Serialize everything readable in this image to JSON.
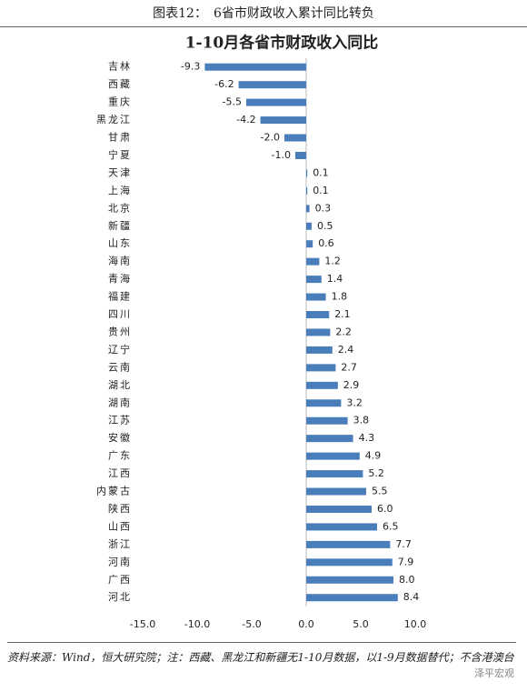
{
  "header": {
    "title": "图表12：　6省市财政收入累计同比转负"
  },
  "chart_data": {
    "type": "hbar",
    "title": "1-10月各省市财政收入同比",
    "categories": [
      "吉林",
      "西藏",
      "重庆",
      "黑龙江",
      "甘肃",
      "宁夏",
      "天津",
      "上海",
      "北京",
      "新疆",
      "山东",
      "海南",
      "青海",
      "福建",
      "四川",
      "贵州",
      "辽宁",
      "云南",
      "湖北",
      "湖南",
      "江苏",
      "安徽",
      "广东",
      "江西",
      "内蒙古",
      "陕西",
      "山西",
      "浙江",
      "河南",
      "广西",
      "河北"
    ],
    "values": [
      -9.3,
      -6.2,
      -5.5,
      -4.2,
      -2.0,
      -1.0,
      0.1,
      0.1,
      0.3,
      0.5,
      0.6,
      1.2,
      1.4,
      1.8,
      2.1,
      2.2,
      2.4,
      2.7,
      2.9,
      3.2,
      3.8,
      4.3,
      4.9,
      5.2,
      5.5,
      6.0,
      6.5,
      7.7,
      7.9,
      8.0,
      8.4
    ],
    "value_labels": [
      "-9.3",
      "-6.2",
      "-5.5",
      "-4.2",
      "-2.0",
      "-1.0",
      "0.1",
      "0.1",
      "0.3",
      "0.5",
      "0.6",
      "1.2",
      "1.4",
      "1.8",
      "2.1",
      "2.2",
      "2.4",
      "2.7",
      "2.9",
      "3.2",
      "3.8",
      "4.3",
      "4.9",
      "5.2",
      "5.5",
      "6.0",
      "6.5",
      "7.7",
      "7.9",
      "8.0",
      "8.4"
    ],
    "color": "#4a7ebb",
    "xlim": [
      -15,
      10
    ],
    "xticks": [
      {
        "value": -15,
        "label": "-15.0"
      },
      {
        "value": -10,
        "label": "-10.0"
      },
      {
        "value": -5,
        "label": "-5.0"
      },
      {
        "value": 0,
        "label": "0.0"
      },
      {
        "value": 5,
        "label": "5.0"
      },
      {
        "value": 10,
        "label": "10.0"
      }
    ]
  },
  "footer": {
    "note": "资料来源：Wind，恒大研究院；注：西藏、黑龙江和新疆无1-10月数据，以1-9月数据替代；不含港澳台",
    "watermark": "泽平宏观"
  }
}
